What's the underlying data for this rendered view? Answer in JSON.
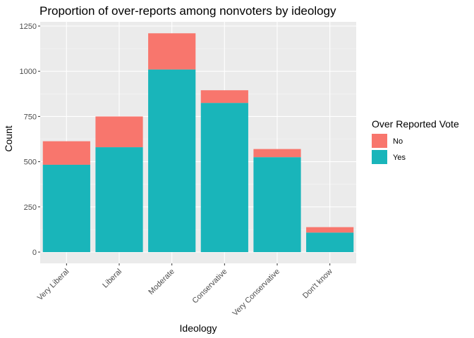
{
  "chart_data": {
    "type": "bar",
    "stacked": true,
    "title": "Proportion of over-reports among nonvoters by ideology",
    "xlabel": "Ideology",
    "ylabel": "Count",
    "categories": [
      "Very Liberal",
      "Liberal",
      "Moderate",
      "Conservative",
      "Very Conservative",
      "Don't know"
    ],
    "series": [
      {
        "name": "No",
        "values": [
          130,
          170,
          200,
          70,
          45,
          30
        ],
        "color": "#F8766D"
      },
      {
        "name": "Yes",
        "values": [
          483,
          580,
          1010,
          825,
          525,
          108
        ],
        "color": "#19B5BA"
      }
    ],
    "yticks": [
      0,
      250,
      500,
      750,
      1000,
      1250
    ],
    "ylim": [
      0,
      1270
    ],
    "grid": true,
    "legend": {
      "title": "Over Reported Vote",
      "placement": "right"
    }
  }
}
